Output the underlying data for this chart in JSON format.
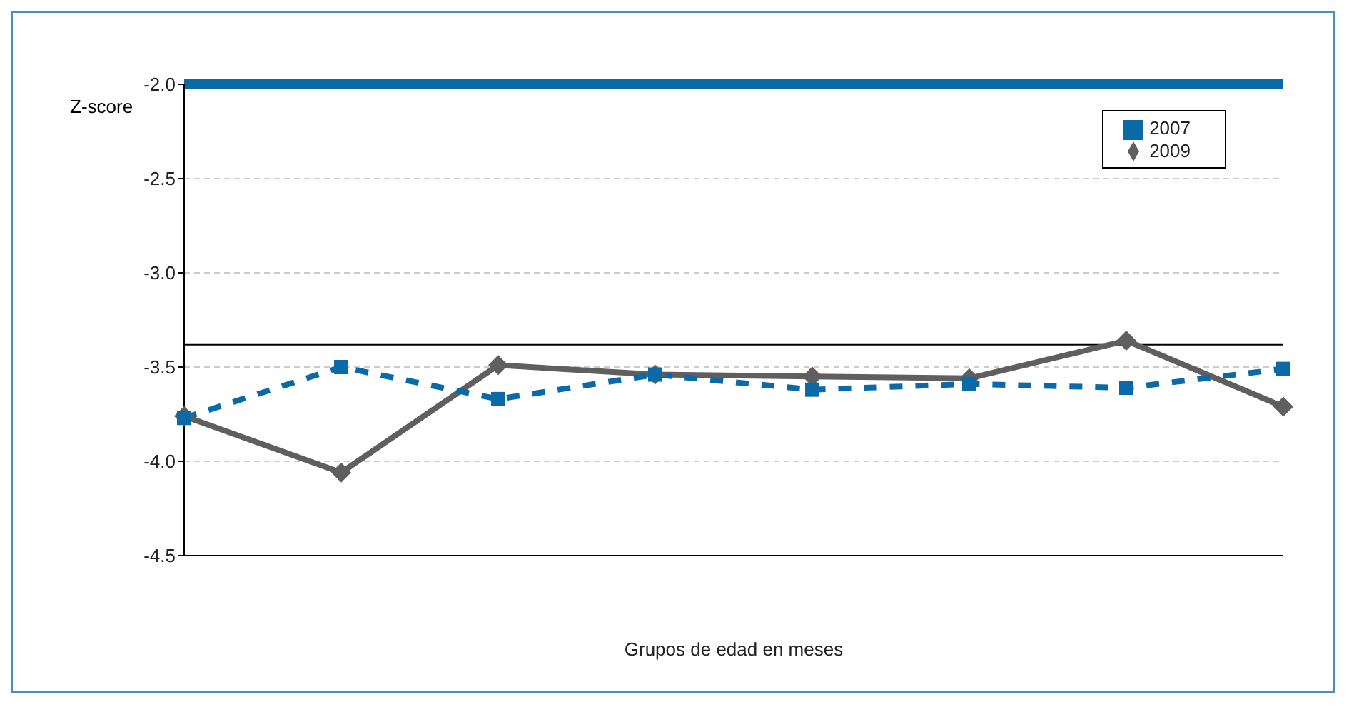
{
  "chart_data": {
    "type": "line",
    "xlabel": "Grupos de edad en meses",
    "ylabel": "Z-score",
    "categories": [
      null,
      null,
      null,
      null,
      null,
      null,
      null,
      null
    ],
    "series": [
      {
        "name": "2009",
        "color": "#5f5f5f",
        "marker": "diamond",
        "line_style": "solid",
        "values": [
          -3.76,
          -4.06,
          -3.49,
          -3.54,
          -3.55,
          -3.56,
          -3.36,
          -3.71
        ]
      },
      {
        "name": "2007",
        "color": "#0a6aa8",
        "marker": "square",
        "line_style": "dashed",
        "values": [
          -3.77,
          -3.5,
          -3.67,
          -3.54,
          -3.62,
          -3.59,
          -3.61,
          -3.51
        ]
      }
    ],
    "ylim": [
      -4.5,
      -2.0
    ],
    "yticks": [
      {
        "value": -2.0,
        "label": "-2.0"
      },
      -2.5,
      {
        "value": -3.0,
        "label": "-3.0"
      },
      -3.5,
      {
        "value": -4.0,
        "label": "-4.0"
      },
      -4.5
    ],
    "ref_lines": [
      {
        "axis": "y",
        "value": -2.0,
        "color": "#0a6aa8"
      },
      {
        "axis": "y",
        "value": -3.38,
        "color": "#000000"
      }
    ],
    "grid": "y",
    "legend": "top right",
    "tick_labels": "y"
  }
}
